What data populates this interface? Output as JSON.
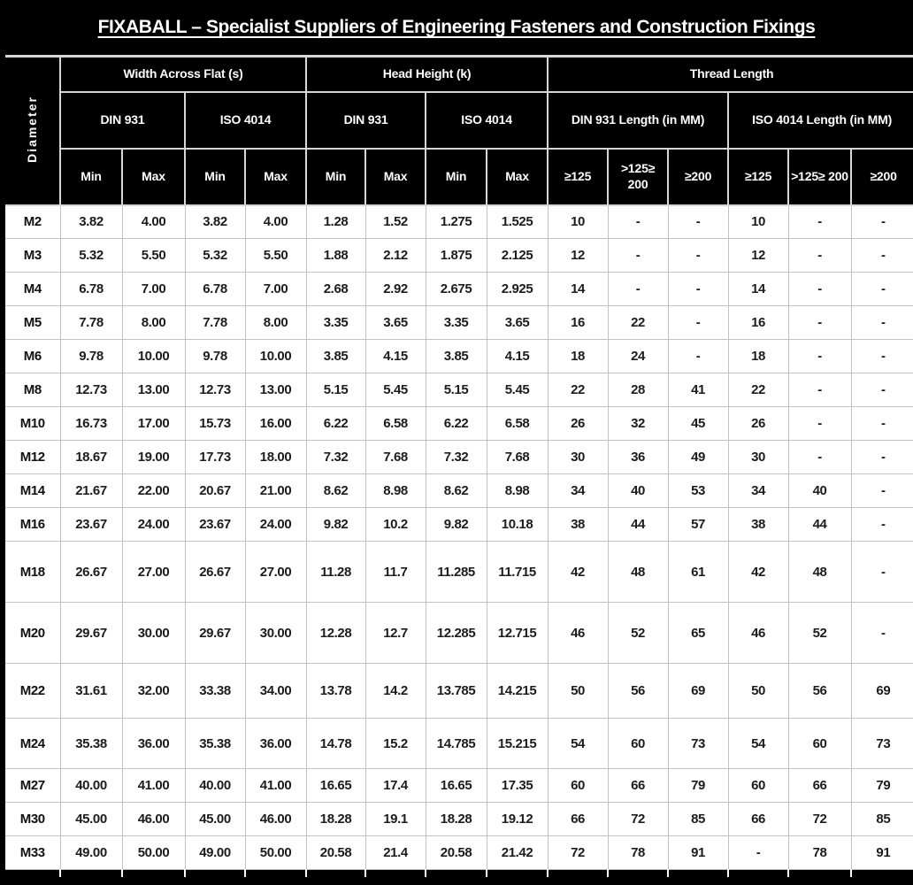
{
  "title": "FIXABALL – Specialist Suppliers of Engineering Fasteners and Construction  Fixings",
  "colors": {
    "frame": "#000000",
    "header_bg": "#000000",
    "header_text": "#ffffff",
    "body_bg": "#ffffff",
    "body_text": "#1c1c1c",
    "gridline": "#c2c2c2"
  },
  "chart_data": {
    "type": "table",
    "title": "FIXABALL – Specialist Suppliers of Engineering Fasteners and Construction  Fixings",
    "corner_header": "Diameter",
    "groups": [
      {
        "label": "Width Across Flat (s)",
        "children": [
          {
            "label": "DIN 931",
            "sub": [
              "Min",
              "Max"
            ]
          },
          {
            "label": "ISO 4014",
            "sub": [
              "Min",
              "Max"
            ]
          }
        ]
      },
      {
        "label": "Head Height (k)",
        "children": [
          {
            "label": "DIN 931",
            "sub": [
              "Min",
              "Max"
            ]
          },
          {
            "label": "ISO 4014",
            "sub": [
              "Min",
              "Max"
            ]
          }
        ]
      },
      {
        "label": "Thread Length",
        "children": [
          {
            "label": "DIN 931 Length (in MM)",
            "sub": [
              "≥125",
              ">125≥ 200",
              "≥200"
            ]
          },
          {
            "label": "ISO 4014 Length (in MM)",
            "sub": [
              "≥125",
              ">125≥ 200",
              "≥200"
            ]
          }
        ]
      }
    ],
    "rows": [
      {
        "diameter": "M2",
        "values": [
          "3.82",
          "4.00",
          "3.82",
          "4.00",
          "1.28",
          "1.52",
          "1.275",
          "1.525",
          "10",
          "-",
          "-",
          "10",
          "-",
          "-"
        ]
      },
      {
        "diameter": "M3",
        "values": [
          "5.32",
          "5.50",
          "5.32",
          "5.50",
          "1.88",
          "2.12",
          "1.875",
          "2.125",
          "12",
          "-",
          "-",
          "12",
          "-",
          "-"
        ]
      },
      {
        "diameter": "M4",
        "values": [
          "6.78",
          "7.00",
          "6.78",
          "7.00",
          "2.68",
          "2.92",
          "2.675",
          "2.925",
          "14",
          "-",
          "-",
          "14",
          "-",
          "-"
        ]
      },
      {
        "diameter": "M5",
        "values": [
          "7.78",
          "8.00",
          "7.78",
          "8.00",
          "3.35",
          "3.65",
          "3.35",
          "3.65",
          "16",
          "22",
          "-",
          "16",
          "-",
          "-"
        ]
      },
      {
        "diameter": "M6",
        "values": [
          "9.78",
          "10.00",
          "9.78",
          "10.00",
          "3.85",
          "4.15",
          "3.85",
          "4.15",
          "18",
          "24",
          "-",
          "18",
          "-",
          "-"
        ]
      },
      {
        "diameter": "M8",
        "values": [
          "12.73",
          "13.00",
          "12.73",
          "13.00",
          "5.15",
          "5.45",
          "5.15",
          "5.45",
          "22",
          "28",
          "41",
          "22",
          "-",
          "-"
        ]
      },
      {
        "diameter": "M10",
        "values": [
          "16.73",
          "17.00",
          "15.73",
          "16.00",
          "6.22",
          "6.58",
          "6.22",
          "6.58",
          "26",
          "32",
          "45",
          "26",
          "-",
          "-"
        ]
      },
      {
        "diameter": "M12",
        "values": [
          "18.67",
          "19.00",
          "17.73",
          "18.00",
          "7.32",
          "7.68",
          "7.32",
          "7.68",
          "30",
          "36",
          "49",
          "30",
          "-",
          "-"
        ]
      },
      {
        "diameter": "M14",
        "values": [
          "21.67",
          "22.00",
          "20.67",
          "21.00",
          "8.62",
          "8.98",
          "8.62",
          "8.98",
          "34",
          "40",
          "53",
          "34",
          "40",
          "-"
        ]
      },
      {
        "diameter": "M16",
        "values": [
          "23.67",
          "24.00",
          "23.67",
          "24.00",
          "9.82",
          "10.2",
          "9.82",
          "10.18",
          "38",
          "44",
          "57",
          "38",
          "44",
          "-"
        ]
      },
      {
        "diameter": "M18",
        "values": [
          "26.67",
          "27.00",
          "26.67",
          "27.00",
          "11.28",
          "11.7",
          "11.285",
          "11.715",
          "42",
          "48",
          "61",
          "42",
          "48",
          "-"
        ]
      },
      {
        "diameter": "M20",
        "values": [
          "29.67",
          "30.00",
          "29.67",
          "30.00",
          "12.28",
          "12.7",
          "12.285",
          "12.715",
          "46",
          "52",
          "65",
          "46",
          "52",
          "-"
        ]
      },
      {
        "diameter": "M22",
        "values": [
          "31.61",
          "32.00",
          "33.38",
          "34.00",
          "13.78",
          "14.2",
          "13.785",
          "14.215",
          "50",
          "56",
          "69",
          "50",
          "56",
          "69"
        ]
      },
      {
        "diameter": "M24",
        "values": [
          "35.38",
          "36.00",
          "35.38",
          "36.00",
          "14.78",
          "15.2",
          "14.785",
          "15.215",
          "54",
          "60",
          "73",
          "54",
          "60",
          "73"
        ]
      },
      {
        "diameter": "M27",
        "values": [
          "40.00",
          "41.00",
          "40.00",
          "41.00",
          "16.65",
          "17.4",
          "16.65",
          "17.35",
          "60",
          "66",
          "79",
          "60",
          "66",
          "79"
        ]
      },
      {
        "diameter": "M30",
        "values": [
          "45.00",
          "46.00",
          "45.00",
          "46.00",
          "18.28",
          "19.1",
          "18.28",
          "19.12",
          "66",
          "72",
          "85",
          "66",
          "72",
          "85"
        ]
      },
      {
        "diameter": "M33",
        "values": [
          "49.00",
          "50.00",
          "49.00",
          "50.00",
          "20.58",
          "21.4",
          "20.58",
          "21.42",
          "72",
          "78",
          "91",
          "-",
          "78",
          "91"
        ]
      }
    ]
  }
}
